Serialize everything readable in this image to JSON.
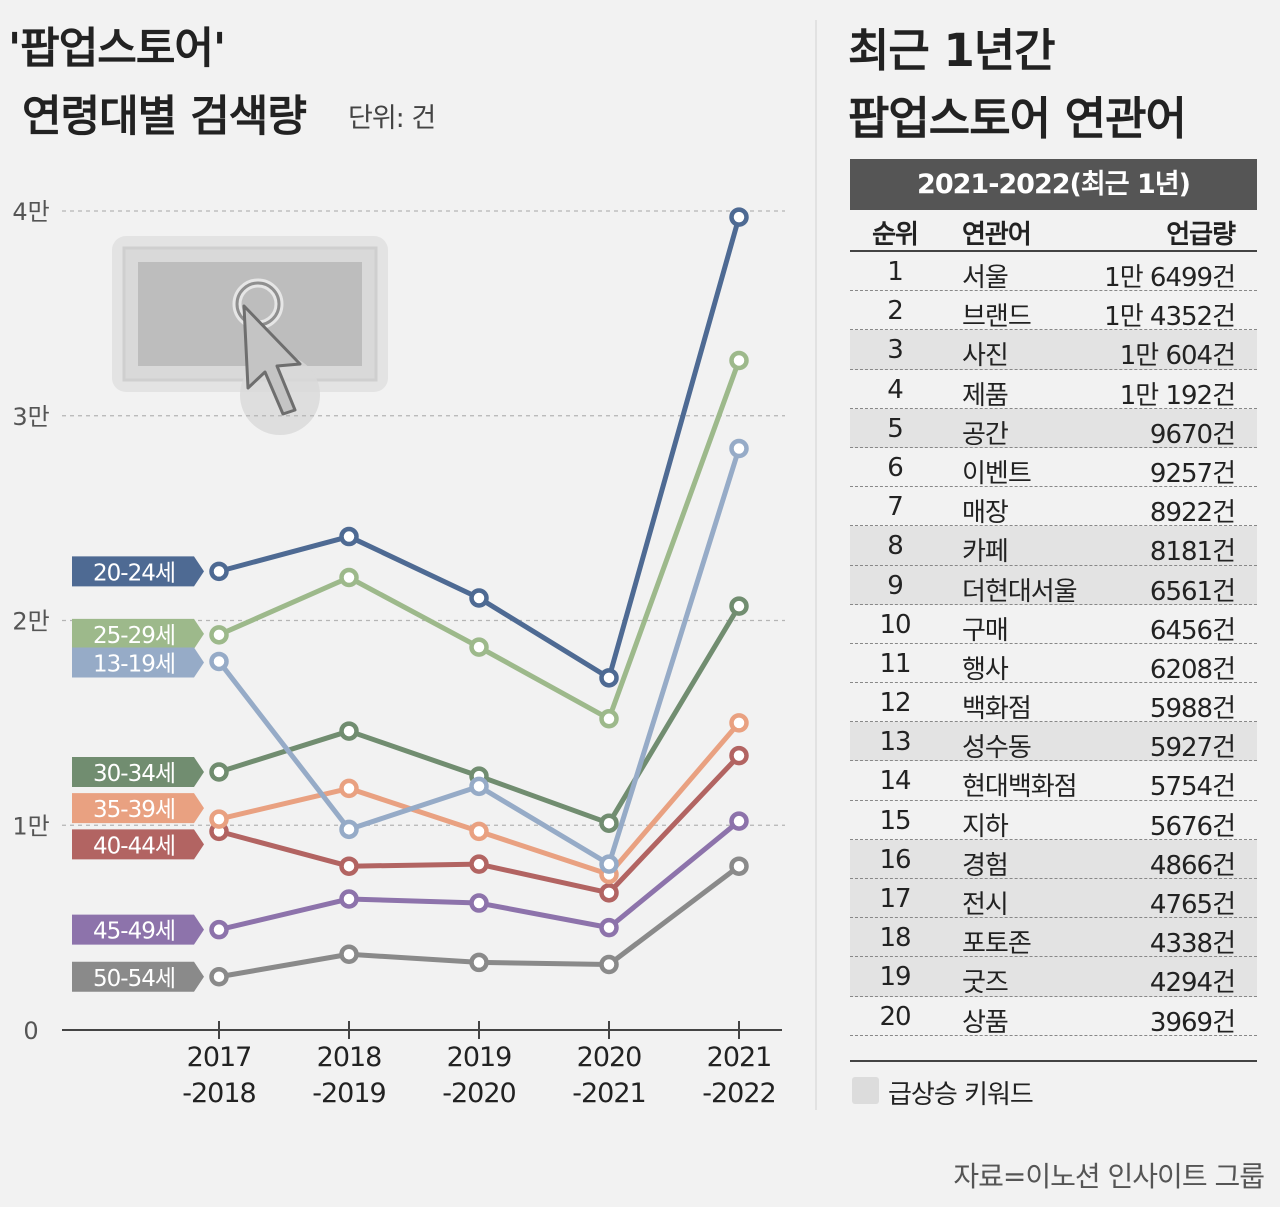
{
  "left_title": {
    "line1": "'팝업스토어'",
    "line2": "연령대별 검색량",
    "unit": "단위: 건"
  },
  "right_title": {
    "line1": "최근 1년간",
    "line2": "팝업스토어 연관어"
  },
  "chart_data": {
    "type": "line",
    "title": "'팝업스토어' 연령대별 검색량",
    "unit": "단위: 건",
    "categories": [
      "2017\n-2018",
      "2018\n-2019",
      "2019\n-2020",
      "2020\n-2021",
      "2021\n-2022"
    ],
    "category_lines": [
      [
        "2017",
        "-2018"
      ],
      [
        "2018",
        "-2019"
      ],
      [
        "2019",
        "-2020"
      ],
      [
        "2020",
        "-2021"
      ],
      [
        "2021",
        "-2022"
      ]
    ],
    "ylim": [
      0,
      40000
    ],
    "yticks": [
      0,
      10000,
      20000,
      30000,
      40000
    ],
    "ytick_labels": [
      "0",
      "1만",
      "2만",
      "3만",
      "4만"
    ],
    "grid": true,
    "series": [
      {
        "name": "20-24세",
        "color": "#4e6a93",
        "values": [
          22400,
          24100,
          21100,
          17200,
          39700
        ]
      },
      {
        "name": "25-29세",
        "color": "#9db98b",
        "values": [
          19300,
          22100,
          18700,
          15200,
          32700
        ]
      },
      {
        "name": "13-19세",
        "color": "#96abc7",
        "values": [
          18000,
          9800,
          11900,
          8100,
          28400
        ]
      },
      {
        "name": "30-34세",
        "color": "#718d70",
        "values": [
          12600,
          14600,
          12400,
          10100,
          20700
        ]
      },
      {
        "name": "35-39세",
        "color": "#e9a181",
        "values": [
          10300,
          11800,
          9700,
          7600,
          15000
        ]
      },
      {
        "name": "40-44세",
        "color": "#b26462",
        "values": [
          9700,
          8000,
          8100,
          6700,
          13400
        ]
      },
      {
        "name": "45-49세",
        "color": "#8d73ab",
        "values": [
          4900,
          6400,
          6200,
          5000,
          10200
        ]
      },
      {
        "name": "50-54세",
        "color": "#8a8a8a",
        "values": [
          2600,
          3700,
          3300,
          3200,
          8000
        ]
      }
    ]
  },
  "table": {
    "header": "2021-2022(최근 1년)",
    "columns": [
      "순위",
      "연관어",
      "언급량"
    ],
    "rows": [
      {
        "rank": "1",
        "keyword": "서울",
        "count": "1만 6499건",
        "rising": false
      },
      {
        "rank": "2",
        "keyword": "브랜드",
        "count": "1만 4352건",
        "rising": false
      },
      {
        "rank": "3",
        "keyword": "사진",
        "count": "1만 604건",
        "rising": true
      },
      {
        "rank": "4",
        "keyword": "제품",
        "count": "1만 192건",
        "rising": false
      },
      {
        "rank": "5",
        "keyword": "공간",
        "count": "9670건",
        "rising": true
      },
      {
        "rank": "6",
        "keyword": "이벤트",
        "count": "9257건",
        "rising": false
      },
      {
        "rank": "7",
        "keyword": "매장",
        "count": "8922건",
        "rising": false
      },
      {
        "rank": "8",
        "keyword": "카페",
        "count": "8181건",
        "rising": true
      },
      {
        "rank": "9",
        "keyword": "더현대서울",
        "count": "6561건",
        "rising": true
      },
      {
        "rank": "10",
        "keyword": "구매",
        "count": "6456건",
        "rising": false
      },
      {
        "rank": "11",
        "keyword": "행사",
        "count": "6208건",
        "rising": false
      },
      {
        "rank": "12",
        "keyword": "백화점",
        "count": "5988건",
        "rising": false
      },
      {
        "rank": "13",
        "keyword": "성수동",
        "count": "5927건",
        "rising": true
      },
      {
        "rank": "14",
        "keyword": "현대백화점",
        "count": "5754건",
        "rising": false
      },
      {
        "rank": "15",
        "keyword": "지하",
        "count": "5676건",
        "rising": false
      },
      {
        "rank": "16",
        "keyword": "경험",
        "count": "4866건",
        "rising": true
      },
      {
        "rank": "17",
        "keyword": "전시",
        "count": "4765건",
        "rising": true
      },
      {
        "rank": "18",
        "keyword": "포토존",
        "count": "4338건",
        "rising": true
      },
      {
        "rank": "19",
        "keyword": "굿즈",
        "count": "4294건",
        "rising": true
      },
      {
        "rank": "20",
        "keyword": "상품",
        "count": "3969건",
        "rising": false
      }
    ]
  },
  "legend": {
    "label": "급상승 키워드"
  },
  "source": "자료=이노션 인사이트 그룹",
  "colors": {
    "table_header": "#555555",
    "rising_highlight": "#e3e3e3"
  }
}
